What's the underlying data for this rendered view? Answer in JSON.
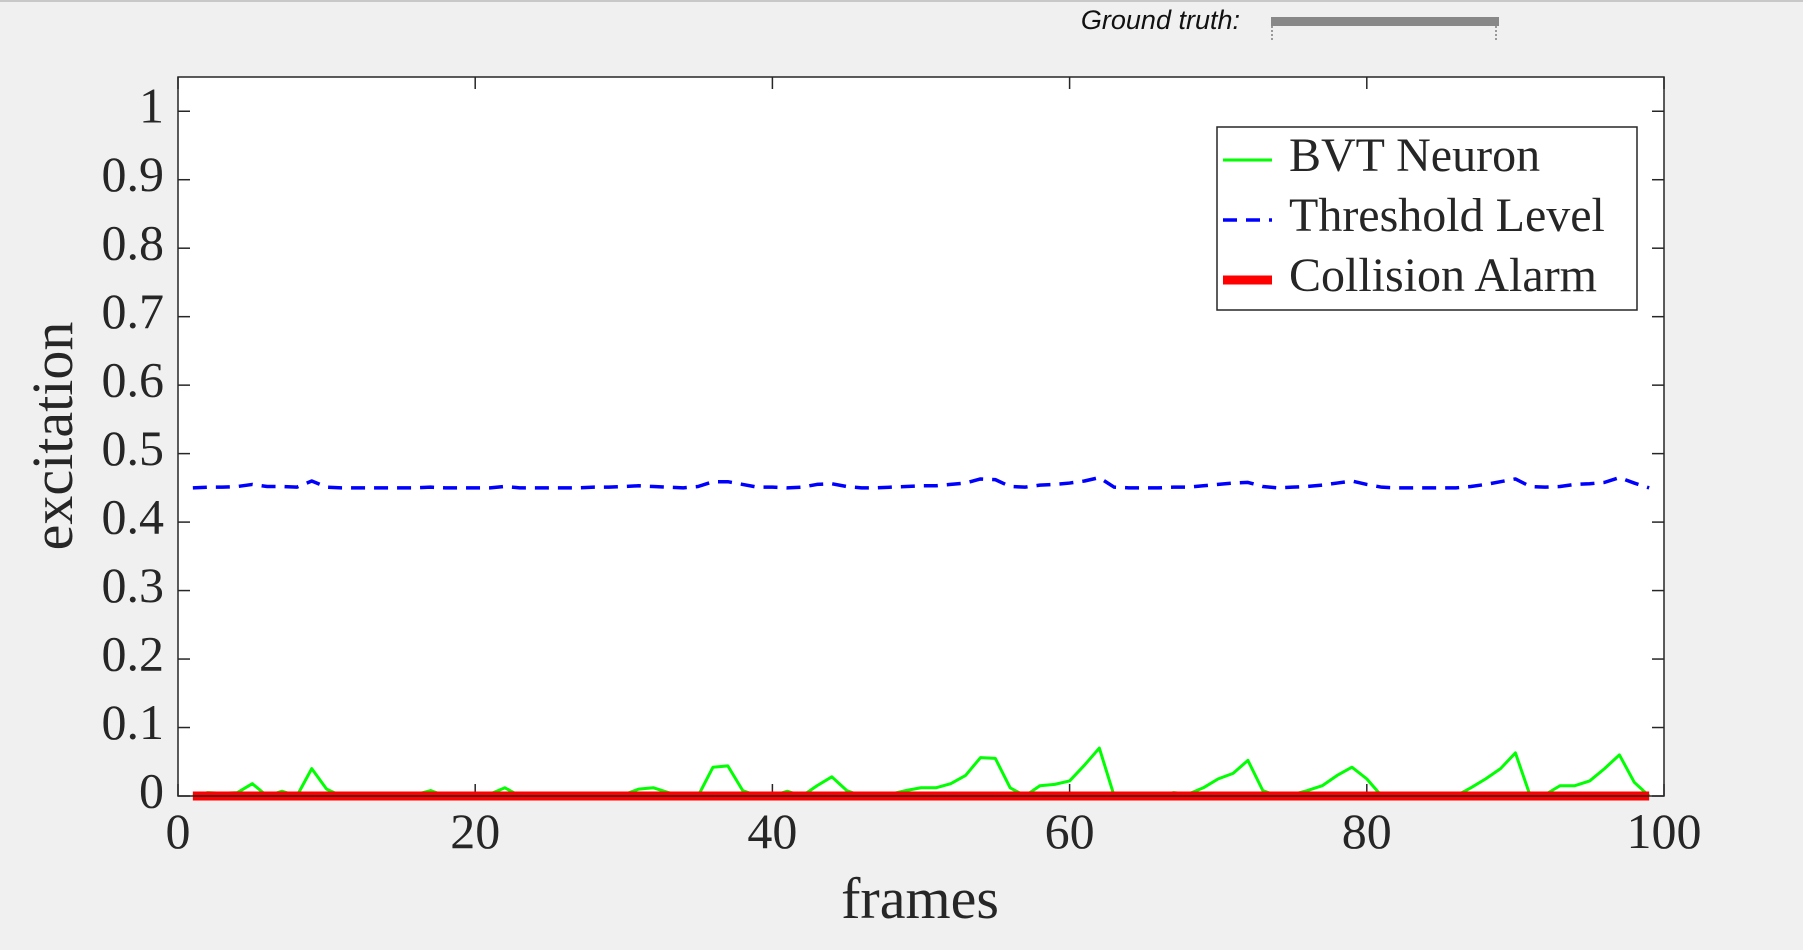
{
  "toolbar": {
    "ground_truth_label": "Ground truth:"
  },
  "chart_data": {
    "type": "line",
    "xlabel": "frames",
    "ylabel": "excitation",
    "xlim": [
      0,
      100
    ],
    "ylim": [
      0,
      1.05
    ],
    "xticks": [
      0,
      20,
      40,
      60,
      80,
      100
    ],
    "yticks": [
      0,
      0.1,
      0.2,
      0.3,
      0.4,
      0.5,
      0.6,
      0.7,
      0.8,
      0.9,
      1
    ],
    "legend": "upper right",
    "x": [
      1,
      2,
      3,
      4,
      5,
      6,
      7,
      8,
      9,
      10,
      11,
      12,
      13,
      14,
      15,
      16,
      17,
      18,
      19,
      20,
      21,
      22,
      23,
      24,
      25,
      26,
      27,
      28,
      29,
      30,
      31,
      32,
      33,
      34,
      35,
      36,
      37,
      38,
      39,
      40,
      41,
      42,
      43,
      44,
      45,
      46,
      47,
      48,
      49,
      50,
      51,
      52,
      53,
      54,
      55,
      56,
      57,
      58,
      59,
      60,
      61,
      62,
      63,
      64,
      65,
      66,
      67,
      68,
      69,
      70,
      71,
      72,
      73,
      74,
      75,
      76,
      77,
      78,
      79,
      80,
      81,
      82,
      83,
      84,
      85,
      86,
      87,
      88,
      89,
      90,
      91,
      92,
      93,
      94,
      95,
      96,
      97,
      98,
      99
    ],
    "series": [
      {
        "name": "BVT Neuron",
        "color": "#00ff00",
        "style": "solid",
        "values": [
          0,
          0.005,
          0.004,
          0.005,
          0.018,
          0,
          0.007,
          0,
          0.04,
          0.01,
          0,
          0,
          0,
          0.002,
          0,
          0.002,
          0.008,
          0,
          0,
          0,
          0.003,
          0.012,
          0,
          0,
          0,
          0,
          0,
          0,
          0,
          0.002,
          0.01,
          0.012,
          0.005,
          0,
          0,
          0.042,
          0.044,
          0.008,
          0,
          0,
          0.007,
          0,
          0.015,
          0.028,
          0.008,
          0,
          0,
          0.003,
          0.008,
          0.012,
          0.012,
          0.018,
          0.03,
          0.056,
          0.055,
          0.012,
          0,
          0.015,
          0.017,
          0.022,
          0.045,
          0.07,
          0,
          0,
          0,
          0,
          0.005,
          0.003,
          0.012,
          0.025,
          0.033,
          0.052,
          0.008,
          0,
          0.002,
          0.008,
          0.015,
          0.03,
          0.042,
          0.025,
          0,
          0,
          0,
          0,
          0,
          0,
          0.012,
          0.025,
          0.04,
          0.063,
          0,
          0.002,
          0.015,
          0.015,
          0.022,
          0.04,
          0.06,
          0.02,
          0
        ]
      },
      {
        "name": "Threshold Level",
        "color": "#0000ff",
        "style": "dashed",
        "values": [
          0.45,
          0.451,
          0.451,
          0.452,
          0.455,
          0.452,
          0.452,
          0.451,
          0.46,
          0.451,
          0.45,
          0.45,
          0.45,
          0.45,
          0.45,
          0.45,
          0.451,
          0.45,
          0.45,
          0.45,
          0.45,
          0.452,
          0.45,
          0.45,
          0.45,
          0.45,
          0.45,
          0.451,
          0.451,
          0.452,
          0.453,
          0.452,
          0.451,
          0.45,
          0.452,
          0.459,
          0.459,
          0.455,
          0.451,
          0.451,
          0.45,
          0.451,
          0.455,
          0.456,
          0.452,
          0.45,
          0.45,
          0.451,
          0.452,
          0.453,
          0.453,
          0.455,
          0.457,
          0.463,
          0.462,
          0.452,
          0.451,
          0.454,
          0.455,
          0.457,
          0.46,
          0.465,
          0.451,
          0.45,
          0.45,
          0.45,
          0.451,
          0.451,
          0.453,
          0.455,
          0.457,
          0.458,
          0.452,
          0.45,
          0.451,
          0.452,
          0.454,
          0.457,
          0.46,
          0.455,
          0.451,
          0.45,
          0.45,
          0.45,
          0.45,
          0.45,
          0.452,
          0.455,
          0.459,
          0.463,
          0.452,
          0.451,
          0.452,
          0.455,
          0.456,
          0.458,
          0.465,
          0.457,
          0.45
        ]
      },
      {
        "name": "Collision Alarm",
        "color": "#ff0000",
        "style": "thick",
        "values": [
          0,
          0,
          0,
          0,
          0,
          0,
          0,
          0,
          0,
          0,
          0,
          0,
          0,
          0,
          0,
          0,
          0,
          0,
          0,
          0,
          0,
          0,
          0,
          0,
          0,
          0,
          0,
          0,
          0,
          0,
          0,
          0,
          0,
          0,
          0,
          0,
          0,
          0,
          0,
          0,
          0,
          0,
          0,
          0,
          0,
          0,
          0,
          0,
          0,
          0,
          0,
          0,
          0,
          0,
          0,
          0,
          0,
          0,
          0,
          0,
          0,
          0,
          0,
          0,
          0,
          0,
          0,
          0,
          0,
          0,
          0,
          0,
          0,
          0,
          0,
          0,
          0,
          0,
          0,
          0,
          0,
          0,
          0,
          0,
          0,
          0,
          0,
          0,
          0,
          0,
          0,
          0,
          0,
          0,
          0,
          0,
          0,
          0,
          0
        ]
      }
    ]
  }
}
